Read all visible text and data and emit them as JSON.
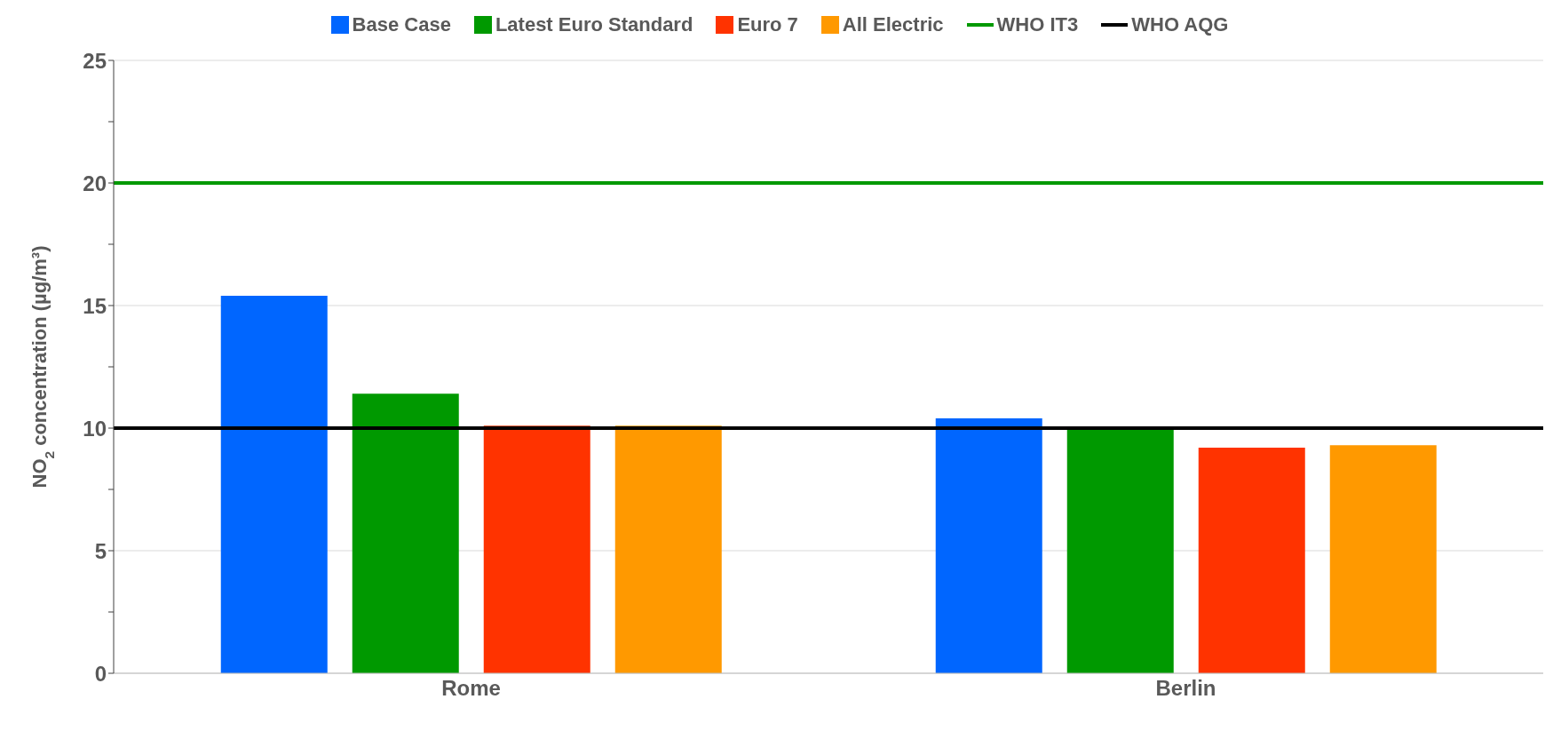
{
  "chart_data": {
    "type": "bar",
    "ylabel": "NO$_{2}$ concentration (µg/m³)",
    "categories": [
      "Rome",
      "Berlin"
    ],
    "series": [
      {
        "name": "Base Case",
        "color": "#0066ff",
        "values": [
          15.4,
          10.4
        ]
      },
      {
        "name": "Latest Euro Standard",
        "color": "#009900",
        "values": [
          11.4,
          10.0
        ]
      },
      {
        "name": "Euro 7",
        "color": "#ff3300",
        "values": [
          10.1,
          9.2
        ]
      },
      {
        "name": "All Electric",
        "color": "#ff9900",
        "values": [
          10.1,
          9.3
        ]
      }
    ],
    "ref_lines": [
      {
        "axis": "y",
        "value": 20,
        "label": "WHO IT3",
        "color": "#009900"
      },
      {
        "axis": "y",
        "value": 10,
        "label": "WHO AQG",
        "color": "#000000"
      }
    ],
    "ylim": [
      0,
      25
    ],
    "yticks": [
      0,
      {
        "value": 2.5,
        "label": null
      },
      5,
      {
        "value": 7.5,
        "label": null
      },
      10,
      {
        "value": 12.5,
        "label": null
      },
      15,
      {
        "value": 17.5,
        "label": null
      },
      20,
      {
        "value": 22.5,
        "label": null
      },
      25
    ],
    "grid": "y",
    "legend": "top"
  }
}
